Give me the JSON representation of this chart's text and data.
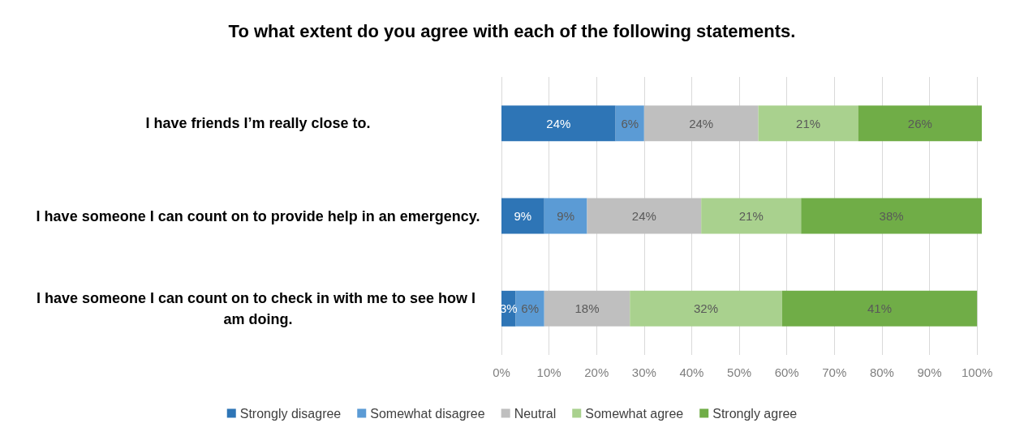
{
  "chart_data": {
    "type": "bar",
    "orientation": "horizontal",
    "stacked": true,
    "title": "To what extent do you agree with each of the following statements.",
    "categories": [
      "I have friends I’m really close to.",
      "I have someone I can count on to provide help in an emergency.",
      "I have someone I can count on to check in with me to see how I am doing."
    ],
    "series": [
      {
        "name": "Strongly disagree",
        "color": "#2e75b6",
        "values": [
          24,
          9,
          3
        ],
        "value_labels": [
          "24%",
          "9%",
          "3%"
        ]
      },
      {
        "name": "Somewhat disagree",
        "color": "#5b9bd5",
        "values": [
          6,
          9,
          6
        ],
        "value_labels": [
          "6%",
          "9%",
          "6%"
        ]
      },
      {
        "name": "Neutral",
        "color": "#bfbfbf",
        "values": [
          24,
          24,
          18
        ],
        "value_labels": [
          "24%",
          "24%",
          "18%"
        ]
      },
      {
        "name": "Somewhat agree",
        "color": "#a9d18e",
        "values": [
          21,
          21,
          32
        ],
        "value_labels": [
          "21%",
          "21%",
          "32%"
        ]
      },
      {
        "name": "Strongly agree",
        "color": "#70ad47",
        "values": [
          26,
          38,
          41
        ],
        "value_labels": [
          "26%",
          "38%",
          "41%"
        ]
      }
    ],
    "xlim": [
      0,
      101
    ],
    "xticks": [
      {
        "value": 0,
        "label": "0%"
      },
      {
        "value": 10,
        "label": "10%"
      },
      {
        "value": 20,
        "label": "20%"
      },
      {
        "value": 30,
        "label": "30%"
      },
      {
        "value": 40,
        "label": "40%"
      },
      {
        "value": 50,
        "label": "50%"
      },
      {
        "value": 60,
        "label": "60%"
      },
      {
        "value": 70,
        "label": "70%"
      },
      {
        "value": 80,
        "label": "80%"
      },
      {
        "value": 90,
        "label": "90%"
      },
      {
        "value": 100,
        "label": "100%"
      }
    ],
    "grid": "x",
    "legend": "bottom"
  }
}
